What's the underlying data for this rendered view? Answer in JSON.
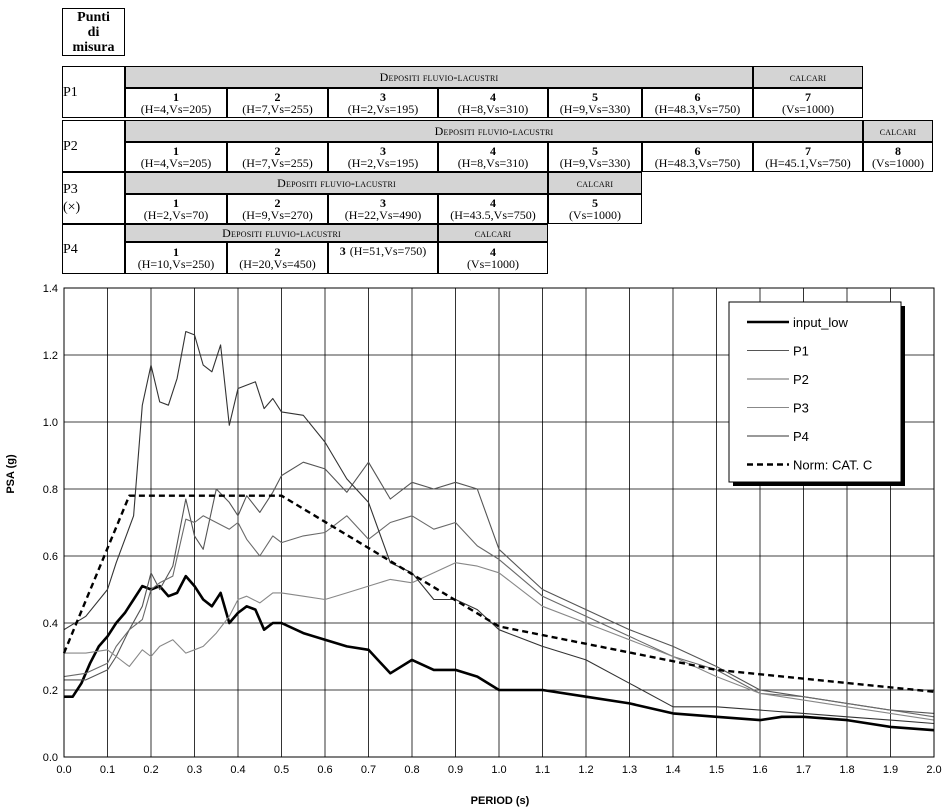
{
  "table": {
    "header_title": [
      "Punti",
      "di",
      "misura"
    ],
    "rows": [
      {
        "point": "P1",
        "point_note": "",
        "group_fluvio": "Depositi fluvio-lacustri",
        "group_calcari": "calcari",
        "layers": [
          {
            "n": "1",
            "desc": "(H=4,Vs=205)"
          },
          {
            "n": "2",
            "desc": "(H=7,Vs=255)"
          },
          {
            "n": "3",
            "desc": "(H=2,Vs=195)"
          },
          {
            "n": "4",
            "desc": "(H=8,Vs=310)"
          },
          {
            "n": "5",
            "desc": "(H=9,Vs=330)"
          },
          {
            "n": "6",
            "desc": "(H=48.3,Vs=750)"
          },
          {
            "n": "7",
            "desc": "(Vs=1000)"
          }
        ]
      },
      {
        "point": "P2",
        "point_note": "",
        "group_fluvio": "Depositi fluvio-lacustri",
        "group_calcari": "calcari",
        "layers": [
          {
            "n": "1",
            "desc": "(H=4,Vs=205)"
          },
          {
            "n": "2",
            "desc": "(H=7,Vs=255)"
          },
          {
            "n": "3",
            "desc": "(H=2,Vs=195)"
          },
          {
            "n": "4",
            "desc": "(H=8,Vs=310)"
          },
          {
            "n": "5",
            "desc": "(H=9,Vs=330)"
          },
          {
            "n": "6",
            "desc": "(H=48.3,Vs=750)"
          },
          {
            "n": "7",
            "desc": "(H=45.1,Vs=750)"
          },
          {
            "n": "8",
            "desc": "(Vs=1000)"
          }
        ]
      },
      {
        "point": "P3",
        "point_note": "(×)",
        "group_fluvio": "Depositi fluvio-lacustri",
        "group_calcari": "calcari",
        "layers": [
          {
            "n": "1",
            "desc": "(H=2,Vs=70)"
          },
          {
            "n": "2",
            "desc": "(H=9,Vs=270)"
          },
          {
            "n": "3",
            "desc": "(H=22,Vs=490)"
          },
          {
            "n": "4",
            "desc": "(H=43.5,Vs=750)"
          },
          {
            "n": "5",
            "desc": "(Vs=1000)"
          }
        ]
      },
      {
        "point": "P4",
        "point_note": "",
        "group_fluvio": "Depositi fluvio-lacustri",
        "group_calcari": "calcari",
        "layers": [
          {
            "n": "1",
            "desc": "(H=10,Vs=250)"
          },
          {
            "n": "2",
            "desc": "(H=20,Vs=450)"
          },
          {
            "n": "3",
            "desc": "(H=51,Vs=750)"
          },
          {
            "n": "4",
            "desc": "(Vs=1000)"
          }
        ]
      }
    ]
  },
  "chart_data": {
    "type": "line",
    "xlabel": "PERIOD (s)",
    "ylabel": "PSA (g)",
    "xlim": [
      0,
      2.0
    ],
    "ylim": [
      0,
      1.4
    ],
    "xticks": [
      "0.0",
      "0.1",
      "0.2",
      "0.3",
      "0.4",
      "0.5",
      "0.6",
      "0.7",
      "0.8",
      "0.9",
      "1.0",
      "1.1",
      "1.2",
      "1.3",
      "1.4",
      "1.5",
      "1.6",
      "1.7",
      "1.8",
      "1.9",
      "2.0"
    ],
    "yticks": [
      "0.0",
      "0.2",
      "0.4",
      "0.6",
      "0.8",
      "1.0",
      "1.2",
      "1.4"
    ],
    "grid": true,
    "legend_position": "top-right",
    "series": [
      {
        "name": "input_low",
        "color": "#000000",
        "style": "thick",
        "x": [
          0,
          0.02,
          0.04,
          0.06,
          0.08,
          0.1,
          0.12,
          0.14,
          0.16,
          0.18,
          0.2,
          0.22,
          0.24,
          0.26,
          0.28,
          0.3,
          0.32,
          0.34,
          0.36,
          0.38,
          0.4,
          0.42,
          0.44,
          0.46,
          0.48,
          0.5,
          0.55,
          0.6,
          0.65,
          0.7,
          0.75,
          0.8,
          0.85,
          0.9,
          0.95,
          1.0,
          1.05,
          1.1,
          1.2,
          1.3,
          1.4,
          1.5,
          1.6,
          1.65,
          1.7,
          1.8,
          1.9,
          2.0
        ],
        "y": [
          0.18,
          0.18,
          0.22,
          0.28,
          0.33,
          0.36,
          0.4,
          0.43,
          0.47,
          0.51,
          0.5,
          0.51,
          0.48,
          0.49,
          0.54,
          0.51,
          0.47,
          0.45,
          0.49,
          0.4,
          0.43,
          0.45,
          0.44,
          0.38,
          0.4,
          0.4,
          0.37,
          0.35,
          0.33,
          0.32,
          0.25,
          0.29,
          0.26,
          0.26,
          0.24,
          0.2,
          0.2,
          0.2,
          0.18,
          0.16,
          0.13,
          0.12,
          0.11,
          0.12,
          0.12,
          0.11,
          0.09,
          0.08
        ]
      },
      {
        "name": "P1",
        "color": "#555555",
        "style": "thin",
        "x": [
          0,
          0.05,
          0.1,
          0.12,
          0.15,
          0.18,
          0.2,
          0.22,
          0.25,
          0.28,
          0.3,
          0.32,
          0.35,
          0.38,
          0.4,
          0.42,
          0.45,
          0.48,
          0.5,
          0.55,
          0.6,
          0.65,
          0.7,
          0.75,
          0.8,
          0.85,
          0.9,
          0.95,
          1.0,
          1.1,
          1.2,
          1.3,
          1.4,
          1.5,
          1.6,
          1.7,
          1.8,
          1.9,
          2.0
        ],
        "y": [
          0.23,
          0.23,
          0.26,
          0.3,
          0.38,
          0.45,
          0.55,
          0.5,
          0.57,
          0.77,
          0.66,
          0.62,
          0.8,
          0.76,
          0.72,
          0.78,
          0.73,
          0.79,
          0.84,
          0.88,
          0.86,
          0.79,
          0.88,
          0.77,
          0.82,
          0.8,
          0.82,
          0.8,
          0.62,
          0.5,
          0.44,
          0.38,
          0.33,
          0.27,
          0.2,
          0.18,
          0.16,
          0.14,
          0.13
        ]
      },
      {
        "name": "P2",
        "color": "#6a6a6a",
        "style": "thin",
        "x": [
          0,
          0.05,
          0.1,
          0.12,
          0.15,
          0.18,
          0.2,
          0.22,
          0.25,
          0.28,
          0.3,
          0.32,
          0.35,
          0.38,
          0.4,
          0.42,
          0.45,
          0.48,
          0.5,
          0.55,
          0.6,
          0.65,
          0.7,
          0.75,
          0.8,
          0.85,
          0.9,
          0.95,
          1.0,
          1.1,
          1.2,
          1.3,
          1.4,
          1.5,
          1.6,
          1.7,
          1.8,
          1.9,
          2.0
        ],
        "y": [
          0.24,
          0.25,
          0.28,
          0.33,
          0.38,
          0.41,
          0.5,
          0.52,
          0.54,
          0.71,
          0.7,
          0.72,
          0.7,
          0.68,
          0.7,
          0.65,
          0.6,
          0.66,
          0.64,
          0.66,
          0.67,
          0.72,
          0.65,
          0.7,
          0.72,
          0.68,
          0.7,
          0.63,
          0.59,
          0.48,
          0.42,
          0.36,
          0.3,
          0.26,
          0.19,
          0.18,
          0.16,
          0.14,
          0.12
        ]
      },
      {
        "name": "P3",
        "color": "#888888",
        "style": "thin",
        "x": [
          0,
          0.05,
          0.1,
          0.12,
          0.15,
          0.18,
          0.2,
          0.22,
          0.25,
          0.28,
          0.3,
          0.32,
          0.35,
          0.38,
          0.4,
          0.42,
          0.45,
          0.48,
          0.5,
          0.55,
          0.6,
          0.65,
          0.7,
          0.75,
          0.8,
          0.85,
          0.9,
          0.95,
          1.0,
          1.1,
          1.2,
          1.3,
          1.4,
          1.5,
          1.6,
          1.7,
          1.8,
          1.9,
          2.0
        ],
        "y": [
          0.31,
          0.31,
          0.32,
          0.3,
          0.27,
          0.32,
          0.3,
          0.33,
          0.35,
          0.31,
          0.32,
          0.33,
          0.37,
          0.42,
          0.47,
          0.48,
          0.46,
          0.49,
          0.49,
          0.48,
          0.47,
          0.49,
          0.51,
          0.53,
          0.52,
          0.55,
          0.58,
          0.57,
          0.55,
          0.45,
          0.4,
          0.35,
          0.3,
          0.24,
          0.19,
          0.17,
          0.15,
          0.13,
          0.11
        ]
      },
      {
        "name": "P4",
        "color": "#333333",
        "style": "thin",
        "x": [
          0,
          0.05,
          0.1,
          0.12,
          0.14,
          0.16,
          0.18,
          0.2,
          0.22,
          0.24,
          0.26,
          0.28,
          0.3,
          0.32,
          0.34,
          0.36,
          0.38,
          0.4,
          0.42,
          0.44,
          0.46,
          0.48,
          0.5,
          0.55,
          0.6,
          0.65,
          0.7,
          0.75,
          0.8,
          0.85,
          0.9,
          0.95,
          1.0,
          1.1,
          1.2,
          1.3,
          1.4,
          1.5,
          1.6,
          1.7,
          1.8,
          1.9,
          2.0
        ],
        "y": [
          0.38,
          0.42,
          0.5,
          0.58,
          0.65,
          0.72,
          1.05,
          1.17,
          1.06,
          1.05,
          1.13,
          1.27,
          1.26,
          1.17,
          1.15,
          1.23,
          0.99,
          1.1,
          1.11,
          1.12,
          1.04,
          1.07,
          1.03,
          1.02,
          0.94,
          0.83,
          0.76,
          0.58,
          0.55,
          0.47,
          0.47,
          0.44,
          0.38,
          0.33,
          0.29,
          0.22,
          0.15,
          0.15,
          0.14,
          0.13,
          0.12,
          0.11,
          0.1
        ]
      },
      {
        "name": "Norm: CAT. C",
        "color": "#000000",
        "style": "dashed",
        "x": [
          0,
          0.15,
          0.5,
          1.0,
          1.5,
          2.0
        ],
        "y": [
          0.31,
          0.78,
          0.78,
          0.39,
          0.26,
          0.195
        ]
      }
    ]
  }
}
